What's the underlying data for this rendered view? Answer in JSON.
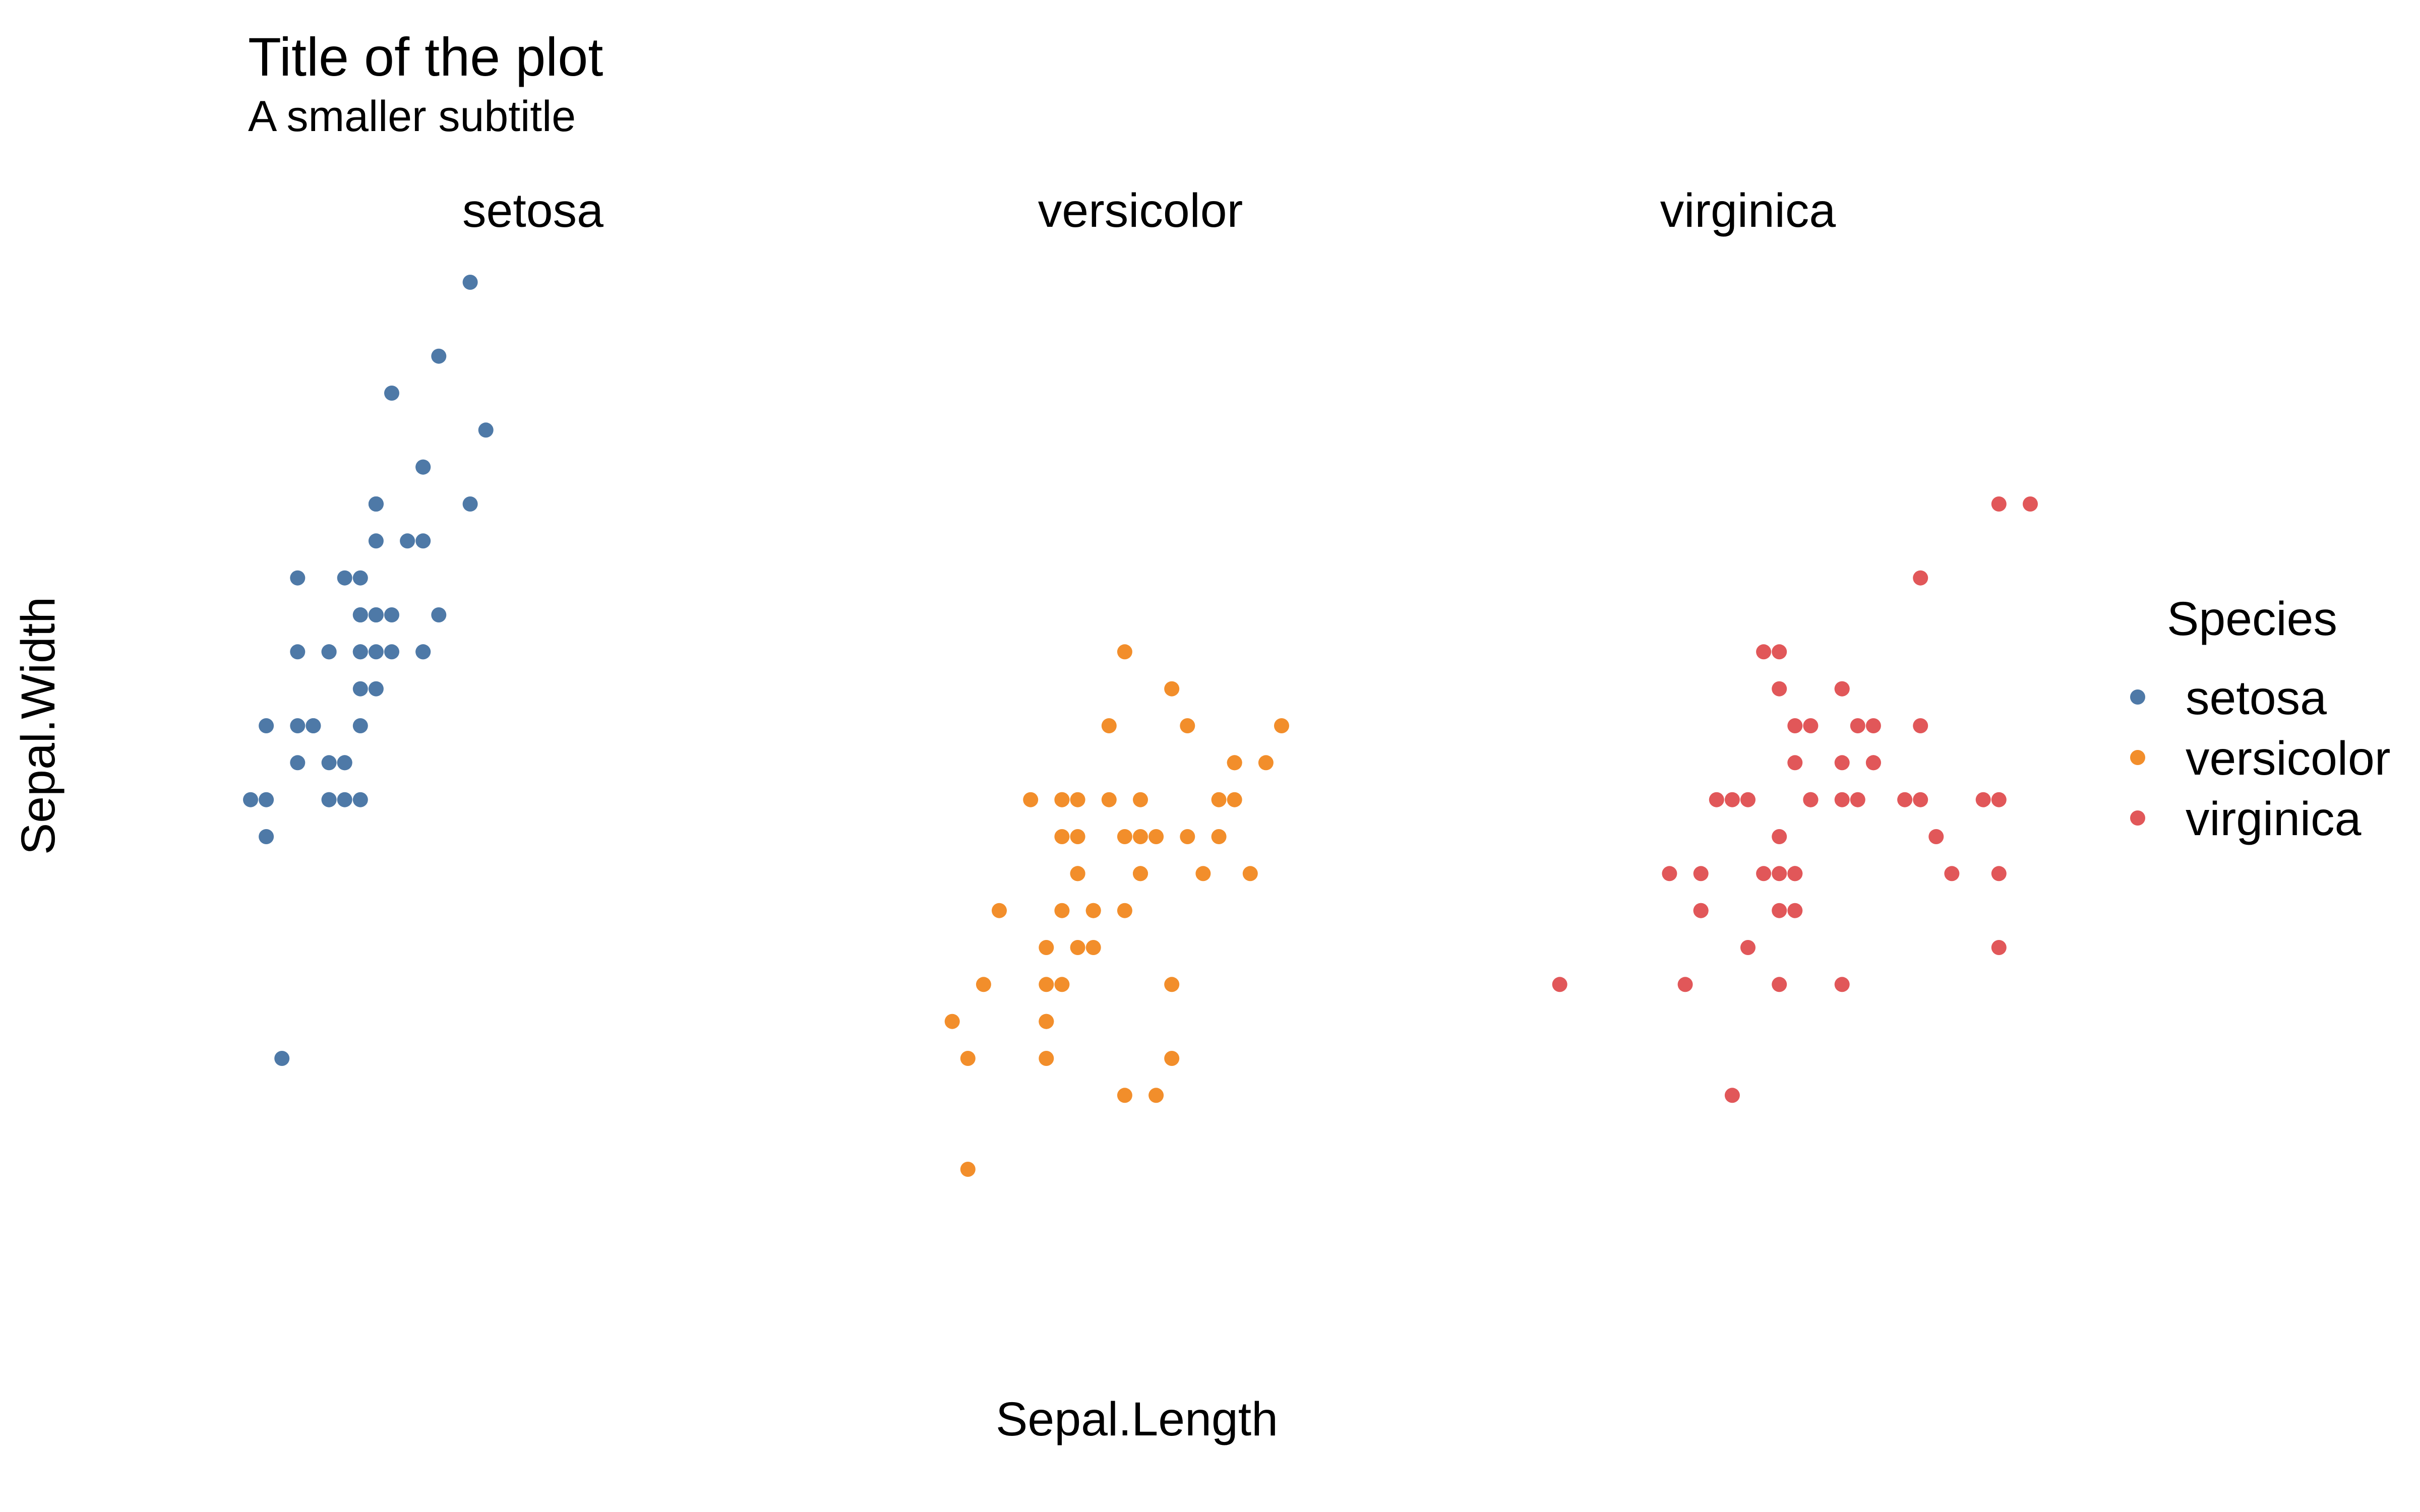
{
  "chart_data": {
    "type": "scatter",
    "title": "Title of the plot",
    "subtitle": "A smaller subtitle",
    "xlabel": "Sepal.Length",
    "ylabel": "Sepal.Width",
    "xlim": [
      4.3,
      7.9
    ],
    "ylim": [
      2.0,
      4.4
    ],
    "grid": false,
    "axis_ticks_shown": false,
    "facet_by": "Species",
    "legend": {
      "title": "Species",
      "position": "right",
      "entries": [
        "setosa",
        "versicolor",
        "virginica"
      ]
    },
    "series": [
      {
        "name": "setosa",
        "color": "#4e79a7",
        "x": [
          5.1,
          4.9,
          4.7,
          4.6,
          5.0,
          5.4,
          4.6,
          5.0,
          4.4,
          4.9,
          5.4,
          4.8,
          4.8,
          4.3,
          5.8,
          5.7,
          5.4,
          5.1,
          5.7,
          5.1,
          5.4,
          5.1,
          4.6,
          5.1,
          4.8,
          5.0,
          5.0,
          5.2,
          5.2,
          4.7,
          4.8,
          5.4,
          5.2,
          5.5,
          4.9,
          5.0,
          5.5,
          4.9,
          4.4,
          5.1,
          5.0,
          4.5,
          4.4,
          5.0,
          5.1,
          4.8,
          5.1,
          4.6,
          5.3,
          5.0
        ],
        "y": [
          3.5,
          3.0,
          3.2,
          3.1,
          3.6,
          3.9,
          3.4,
          3.4,
          2.9,
          3.1,
          3.7,
          3.4,
          3.0,
          3.0,
          4.0,
          4.4,
          3.9,
          3.5,
          3.8,
          3.8,
          3.4,
          3.7,
          3.6,
          3.3,
          3.4,
          3.0,
          3.4,
          3.5,
          3.4,
          3.2,
          3.1,
          3.4,
          4.1,
          4.2,
          3.1,
          3.2,
          3.5,
          3.6,
          3.0,
          3.4,
          3.5,
          2.3,
          3.2,
          3.5,
          3.8,
          3.0,
          3.8,
          3.2,
          3.7,
          3.3
        ]
      },
      {
        "name": "versicolor",
        "color": "#f28e2b",
        "x": [
          7.0,
          6.4,
          6.9,
          5.5,
          6.5,
          5.7,
          6.3,
          4.9,
          6.6,
          5.2,
          5.0,
          5.9,
          6.0,
          6.1,
          5.6,
          6.7,
          5.6,
          5.8,
          6.2,
          5.6,
          5.9,
          6.1,
          6.3,
          6.1,
          6.4,
          6.6,
          6.8,
          6.7,
          6.0,
          5.7,
          5.5,
          5.5,
          5.8,
          6.0,
          5.4,
          6.0,
          6.7,
          6.3,
          5.6,
          5.5,
          5.5,
          6.1,
          5.8,
          5.0,
          5.6,
          5.7,
          5.7,
          6.2,
          5.1,
          5.7
        ],
        "y": [
          3.2,
          3.2,
          3.1,
          2.3,
          2.8,
          2.8,
          3.3,
          2.4,
          2.9,
          2.7,
          2.0,
          3.0,
          2.2,
          2.9,
          2.9,
          3.1,
          3.0,
          2.7,
          2.2,
          2.5,
          3.2,
          2.8,
          2.5,
          2.8,
          2.9,
          3.0,
          2.8,
          3.0,
          2.9,
          2.6,
          2.4,
          2.4,
          2.7,
          2.7,
          3.0,
          3.4,
          3.1,
          2.3,
          3.0,
          2.5,
          2.6,
          3.0,
          2.6,
          2.3,
          2.7,
          3.0,
          2.9,
          2.9,
          2.5,
          2.8
        ]
      },
      {
        "name": "virginica",
        "color": "#e15759",
        "x": [
          6.3,
          5.8,
          7.1,
          6.3,
          6.5,
          7.6,
          4.9,
          7.3,
          6.7,
          7.2,
          6.5,
          6.4,
          6.8,
          5.7,
          5.8,
          6.4,
          6.5,
          7.7,
          7.7,
          6.0,
          6.9,
          5.6,
          7.7,
          6.3,
          6.7,
          7.2,
          6.2,
          6.1,
          6.4,
          7.2,
          7.4,
          7.9,
          6.4,
          6.3,
          6.1,
          7.7,
          6.3,
          6.4,
          6.0,
          6.9,
          6.7,
          6.9,
          5.8,
          6.8,
          6.7,
          6.7,
          6.3,
          6.5,
          6.2,
          5.9
        ],
        "y": [
          3.3,
          2.7,
          3.0,
          2.9,
          3.0,
          3.0,
          2.5,
          2.9,
          2.5,
          3.6,
          3.2,
          2.7,
          3.0,
          2.5,
          2.8,
          3.2,
          3.0,
          3.8,
          2.6,
          2.2,
          3.2,
          2.8,
          2.8,
          2.7,
          3.3,
          3.2,
          2.8,
          3.0,
          2.8,
          3.0,
          2.8,
          3.8,
          2.8,
          2.8,
          2.6,
          3.0,
          3.4,
          3.1,
          3.0,
          3.1,
          3.1,
          3.1,
          2.7,
          3.2,
          3.3,
          3.0,
          2.5,
          3.0,
          3.4,
          3.0
        ]
      }
    ]
  }
}
